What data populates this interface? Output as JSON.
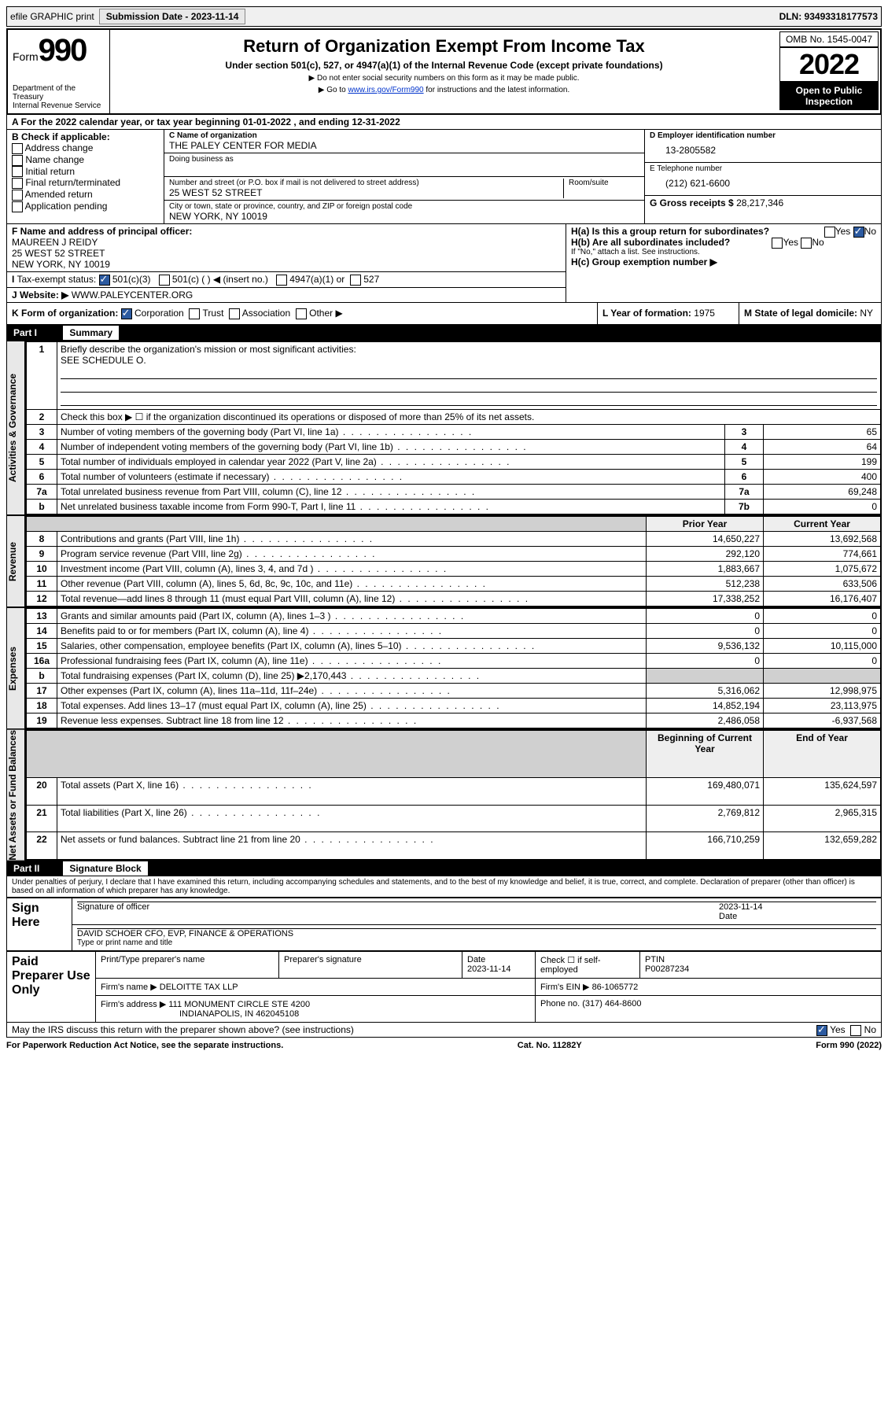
{
  "colors": {
    "link": "#0033cc",
    "black": "#000000",
    "check_blue": "#2c5aa0",
    "shade": "#d0d0d0"
  },
  "topbar": {
    "efile": "efile GRAPHIC print",
    "submission_label": "Submission Date -",
    "submission_date": "2023-11-14",
    "dln": "DLN: 93493318177573"
  },
  "header": {
    "form_label": "Form",
    "form_number": "990",
    "title": "Return of Organization Exempt From Income Tax",
    "subtitle": "Under section 501(c), 527, or 4947(a)(1) of the Internal Revenue Code (except private foundations)",
    "note1": "▶ Do not enter social security numbers on this form as it may be made public.",
    "note2_pre": "▶ Go to ",
    "note2_link": "www.irs.gov/Form990",
    "note2_post": " for instructions and the latest information.",
    "dept": "Department of the Treasury",
    "irs": "Internal Revenue Service",
    "omb": "OMB No. 1545-0047",
    "year": "2022",
    "open": "Open to Public Inspection"
  },
  "lineA": "For the 2022 calendar year, or tax year beginning 01-01-2022 , and ending 12-31-2022",
  "boxB": {
    "label": "B Check if applicable:",
    "items": [
      "Address change",
      "Name change",
      "Initial return",
      "Final return/terminated",
      "Amended return",
      "Application pending"
    ]
  },
  "boxC": {
    "label_name": "C Name of organization",
    "name": "THE PALEY CENTER FOR MEDIA",
    "dba_label": "Doing business as",
    "addr_label": "Number and street (or P.O. box if mail is not delivered to street address)",
    "room_label": "Room/suite",
    "addr": "25 WEST 52 STREET",
    "city_label": "City or town, state or province, country, and ZIP or foreign postal code",
    "city": "NEW YORK, NY  10019"
  },
  "boxD": {
    "label": "D Employer identification number",
    "value": "13-2805582"
  },
  "boxE": {
    "label": "E Telephone number",
    "value": "(212) 621-6600"
  },
  "boxG": {
    "label": "G Gross receipts $",
    "value": "28,217,346"
  },
  "boxF": {
    "label": "F Name and address of principal officer:",
    "name": "MAUREEN J REIDY",
    "addr1": "25 WEST 52 STREET",
    "addr2": "NEW YORK, NY  10019"
  },
  "boxH": {
    "a": "H(a)  Is this a group return for subordinates?",
    "b": "H(b)  Are all subordinates included?",
    "note": "If \"No,\" attach a list. See instructions.",
    "c": "H(c)  Group exemption number ▶",
    "yes": "Yes",
    "no": "No"
  },
  "lineI": {
    "label": "Tax-exempt status:",
    "opts": [
      "501(c)(3)",
      "501(c) (  ) ◀ (insert no.)",
      "4947(a)(1) or",
      "527"
    ]
  },
  "lineJ": {
    "label": "Website: ▶",
    "value": "WWW.PALEYCENTER.ORG"
  },
  "lineK": {
    "label": "K Form of organization:",
    "opts": [
      "Corporation",
      "Trust",
      "Association",
      "Other ▶"
    ]
  },
  "lineL": {
    "label": "L Year of formation:",
    "value": "1975"
  },
  "lineM": {
    "label": "M State of legal domicile:",
    "value": "NY"
  },
  "part1": {
    "title": "Part I",
    "name": "Summary",
    "l1": "Briefly describe the organization's mission or most significant activities:",
    "l1v": "SEE SCHEDULE O.",
    "l2": "Check this box ▶ ☐  if the organization discontinued its operations or disposed of more than 25% of its net assets.",
    "side_ag": "Activities & Governance",
    "side_rev": "Revenue",
    "side_exp": "Expenses",
    "side_na": "Net Assets or Fund Balances",
    "col_py": "Prior Year",
    "col_cy": "Current Year",
    "col_bcy": "Beginning of Current Year",
    "col_eoy": "End of Year",
    "rows_top": [
      {
        "n": "3",
        "d": "Number of voting members of the governing body (Part VI, line 1a)",
        "l": "3",
        "v": "65"
      },
      {
        "n": "4",
        "d": "Number of independent voting members of the governing body (Part VI, line 1b)",
        "l": "4",
        "v": "64"
      },
      {
        "n": "5",
        "d": "Total number of individuals employed in calendar year 2022 (Part V, line 2a)",
        "l": "5",
        "v": "199"
      },
      {
        "n": "6",
        "d": "Total number of volunteers (estimate if necessary)",
        "l": "6",
        "v": "400"
      },
      {
        "n": "7a",
        "d": "Total unrelated business revenue from Part VIII, column (C), line 12",
        "l": "7a",
        "v": "69,248"
      },
      {
        "n": "b",
        "d": "Net unrelated business taxable income from Form 990-T, Part I, line 11",
        "l": "7b",
        "v": "0"
      }
    ],
    "rows_rev": [
      {
        "n": "8",
        "d": "Contributions and grants (Part VIII, line 1h)",
        "py": "14,650,227",
        "cy": "13,692,568"
      },
      {
        "n": "9",
        "d": "Program service revenue (Part VIII, line 2g)",
        "py": "292,120",
        "cy": "774,661"
      },
      {
        "n": "10",
        "d": "Investment income (Part VIII, column (A), lines 3, 4, and 7d )",
        "py": "1,883,667",
        "cy": "1,075,672"
      },
      {
        "n": "11",
        "d": "Other revenue (Part VIII, column (A), lines 5, 6d, 8c, 9c, 10c, and 11e)",
        "py": "512,238",
        "cy": "633,506"
      },
      {
        "n": "12",
        "d": "Total revenue—add lines 8 through 11 (must equal Part VIII, column (A), line 12)",
        "py": "17,338,252",
        "cy": "16,176,407"
      }
    ],
    "rows_exp": [
      {
        "n": "13",
        "d": "Grants and similar amounts paid (Part IX, column (A), lines 1–3 )",
        "py": "0",
        "cy": "0"
      },
      {
        "n": "14",
        "d": "Benefits paid to or for members (Part IX, column (A), line 4)",
        "py": "0",
        "cy": "0"
      },
      {
        "n": "15",
        "d": "Salaries, other compensation, employee benefits (Part IX, column (A), lines 5–10)",
        "py": "9,536,132",
        "cy": "10,115,000"
      },
      {
        "n": "16a",
        "d": "Professional fundraising fees (Part IX, column (A), line 11e)",
        "py": "0",
        "cy": "0"
      },
      {
        "n": "b",
        "d": "Total fundraising expenses (Part IX, column (D), line 25) ▶2,170,443",
        "py": "",
        "cy": "",
        "shade": true
      },
      {
        "n": "17",
        "d": "Other expenses (Part IX, column (A), lines 11a–11d, 11f–24e)",
        "py": "5,316,062",
        "cy": "12,998,975"
      },
      {
        "n": "18",
        "d": "Total expenses. Add lines 13–17 (must equal Part IX, column (A), line 25)",
        "py": "14,852,194",
        "cy": "23,113,975"
      },
      {
        "n": "19",
        "d": "Revenue less expenses. Subtract line 18 from line 12",
        "py": "2,486,058",
        "cy": "-6,937,568"
      }
    ],
    "rows_na": [
      {
        "n": "20",
        "d": "Total assets (Part X, line 16)",
        "py": "169,480,071",
        "cy": "135,624,597"
      },
      {
        "n": "21",
        "d": "Total liabilities (Part X, line 26)",
        "py": "2,769,812",
        "cy": "2,965,315"
      },
      {
        "n": "22",
        "d": "Net assets or fund balances. Subtract line 21 from line 20",
        "py": "166,710,259",
        "cy": "132,659,282"
      }
    ]
  },
  "part2": {
    "title": "Part II",
    "name": "Signature Block",
    "decl": "Under penalties of perjury, I declare that I have examined this return, including accompanying schedules and statements, and to the best of my knowledge and belief, it is true, correct, and complete. Declaration of preparer (other than officer) is based on all information of which preparer has any knowledge."
  },
  "sign": {
    "here": "Sign Here",
    "sig_officer": "Signature of officer",
    "date_label": "Date",
    "date": "2023-11-14",
    "name": "DAVID SCHOER CFO, EVP, FINANCE & OPERATIONS",
    "name_label": "Type or print name and title"
  },
  "paid": {
    "label": "Paid Preparer Use Only",
    "col1": "Print/Type preparer's name",
    "col2": "Preparer's signature",
    "col3": "Date",
    "date": "2023-11-14",
    "check_label": "Check ☐ if self-employed",
    "ptin_label": "PTIN",
    "ptin": "P00287234",
    "firm_name_label": "Firm's name    ▶",
    "firm_name": "DELOITTE TAX LLP",
    "firm_ein_label": "Firm's EIN ▶",
    "firm_ein": "86-1065772",
    "firm_addr_label": "Firm's address ▶",
    "firm_addr1": "111 MONUMENT CIRCLE STE 4200",
    "firm_addr2": "INDIANAPOLIS, IN  462045108",
    "phone_label": "Phone no.",
    "phone": "(317) 464-8600"
  },
  "bottom": {
    "q": "May the IRS discuss this return with the preparer shown above? (see instructions)",
    "yes": "Yes",
    "no": "No"
  },
  "footer": {
    "left": "For Paperwork Reduction Act Notice, see the separate instructions.",
    "mid": "Cat. No. 11282Y",
    "right": "Form 990 (2022)"
  }
}
